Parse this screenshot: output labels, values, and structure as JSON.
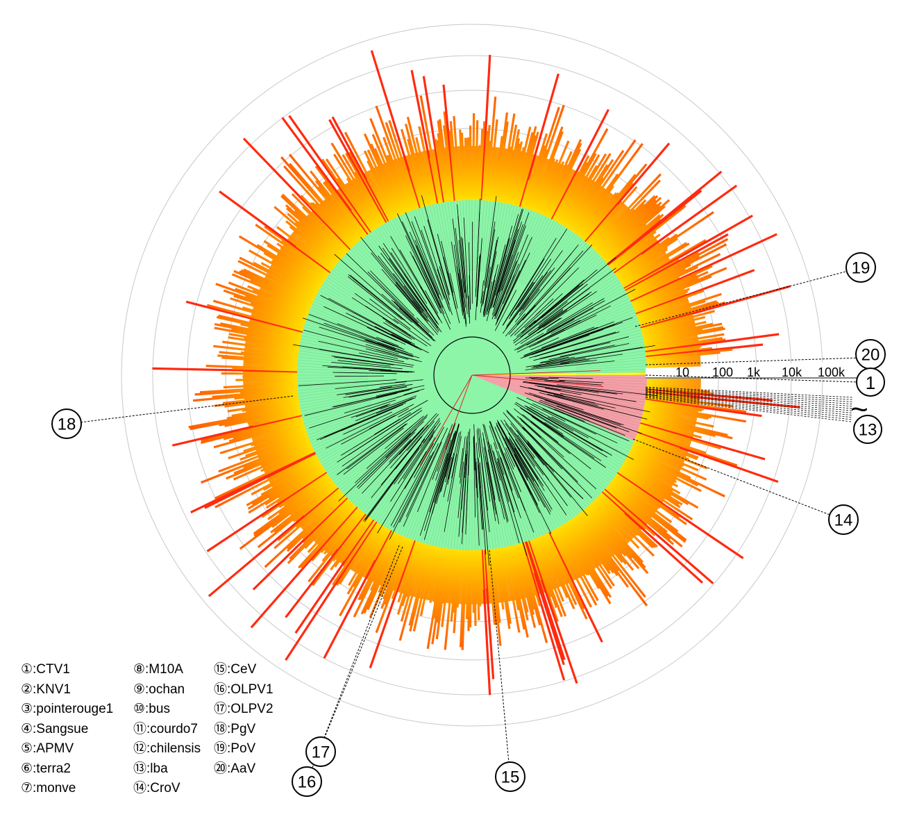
{
  "scale": {
    "labels": [
      "10",
      "100",
      "1k",
      "10k",
      "100k"
    ]
  },
  "callouts": [
    {
      "num": "①",
      "label": "1"
    },
    {
      "num": "⑬",
      "label": "13"
    },
    {
      "num": "⑭",
      "label": "14"
    },
    {
      "num": "⑮",
      "label": "15"
    },
    {
      "num": "⑯",
      "label": "16"
    },
    {
      "num": "⑰",
      "label": "17"
    },
    {
      "num": "⑱",
      "label": "18"
    },
    {
      "num": "⑲",
      "label": "19"
    },
    {
      "num": "⑳",
      "label": "20"
    }
  ],
  "range_marker": "~",
  "legend": {
    "col1": [
      "①:CTV1",
      "②:KNV1",
      "③:pointerouge1",
      "④:Sangsue",
      "⑤:APMV",
      "⑥:terra2",
      "⑦:monve"
    ],
    "col2": [
      "⑧:M10A",
      "⑨:ochan",
      "⑩:bus",
      "⑪:courdo7",
      "⑫:chilensis",
      "⑬:lba",
      "⑭:CroV"
    ],
    "col3": [
      "⑮:CeV",
      "⑯:OLPV1",
      "⑰:OLPV2",
      "⑱:PgV",
      "⑲:PoV",
      "⑳:AaV"
    ]
  },
  "colors": {
    "green_sector": "#8cf5a8",
    "red_sector": "#f4a0a8",
    "ring_inner": "#ffff00",
    "ring_outer": "#ff6a00",
    "bar_long": "#ff2a10",
    "grid": "#c8c8c8"
  }
}
